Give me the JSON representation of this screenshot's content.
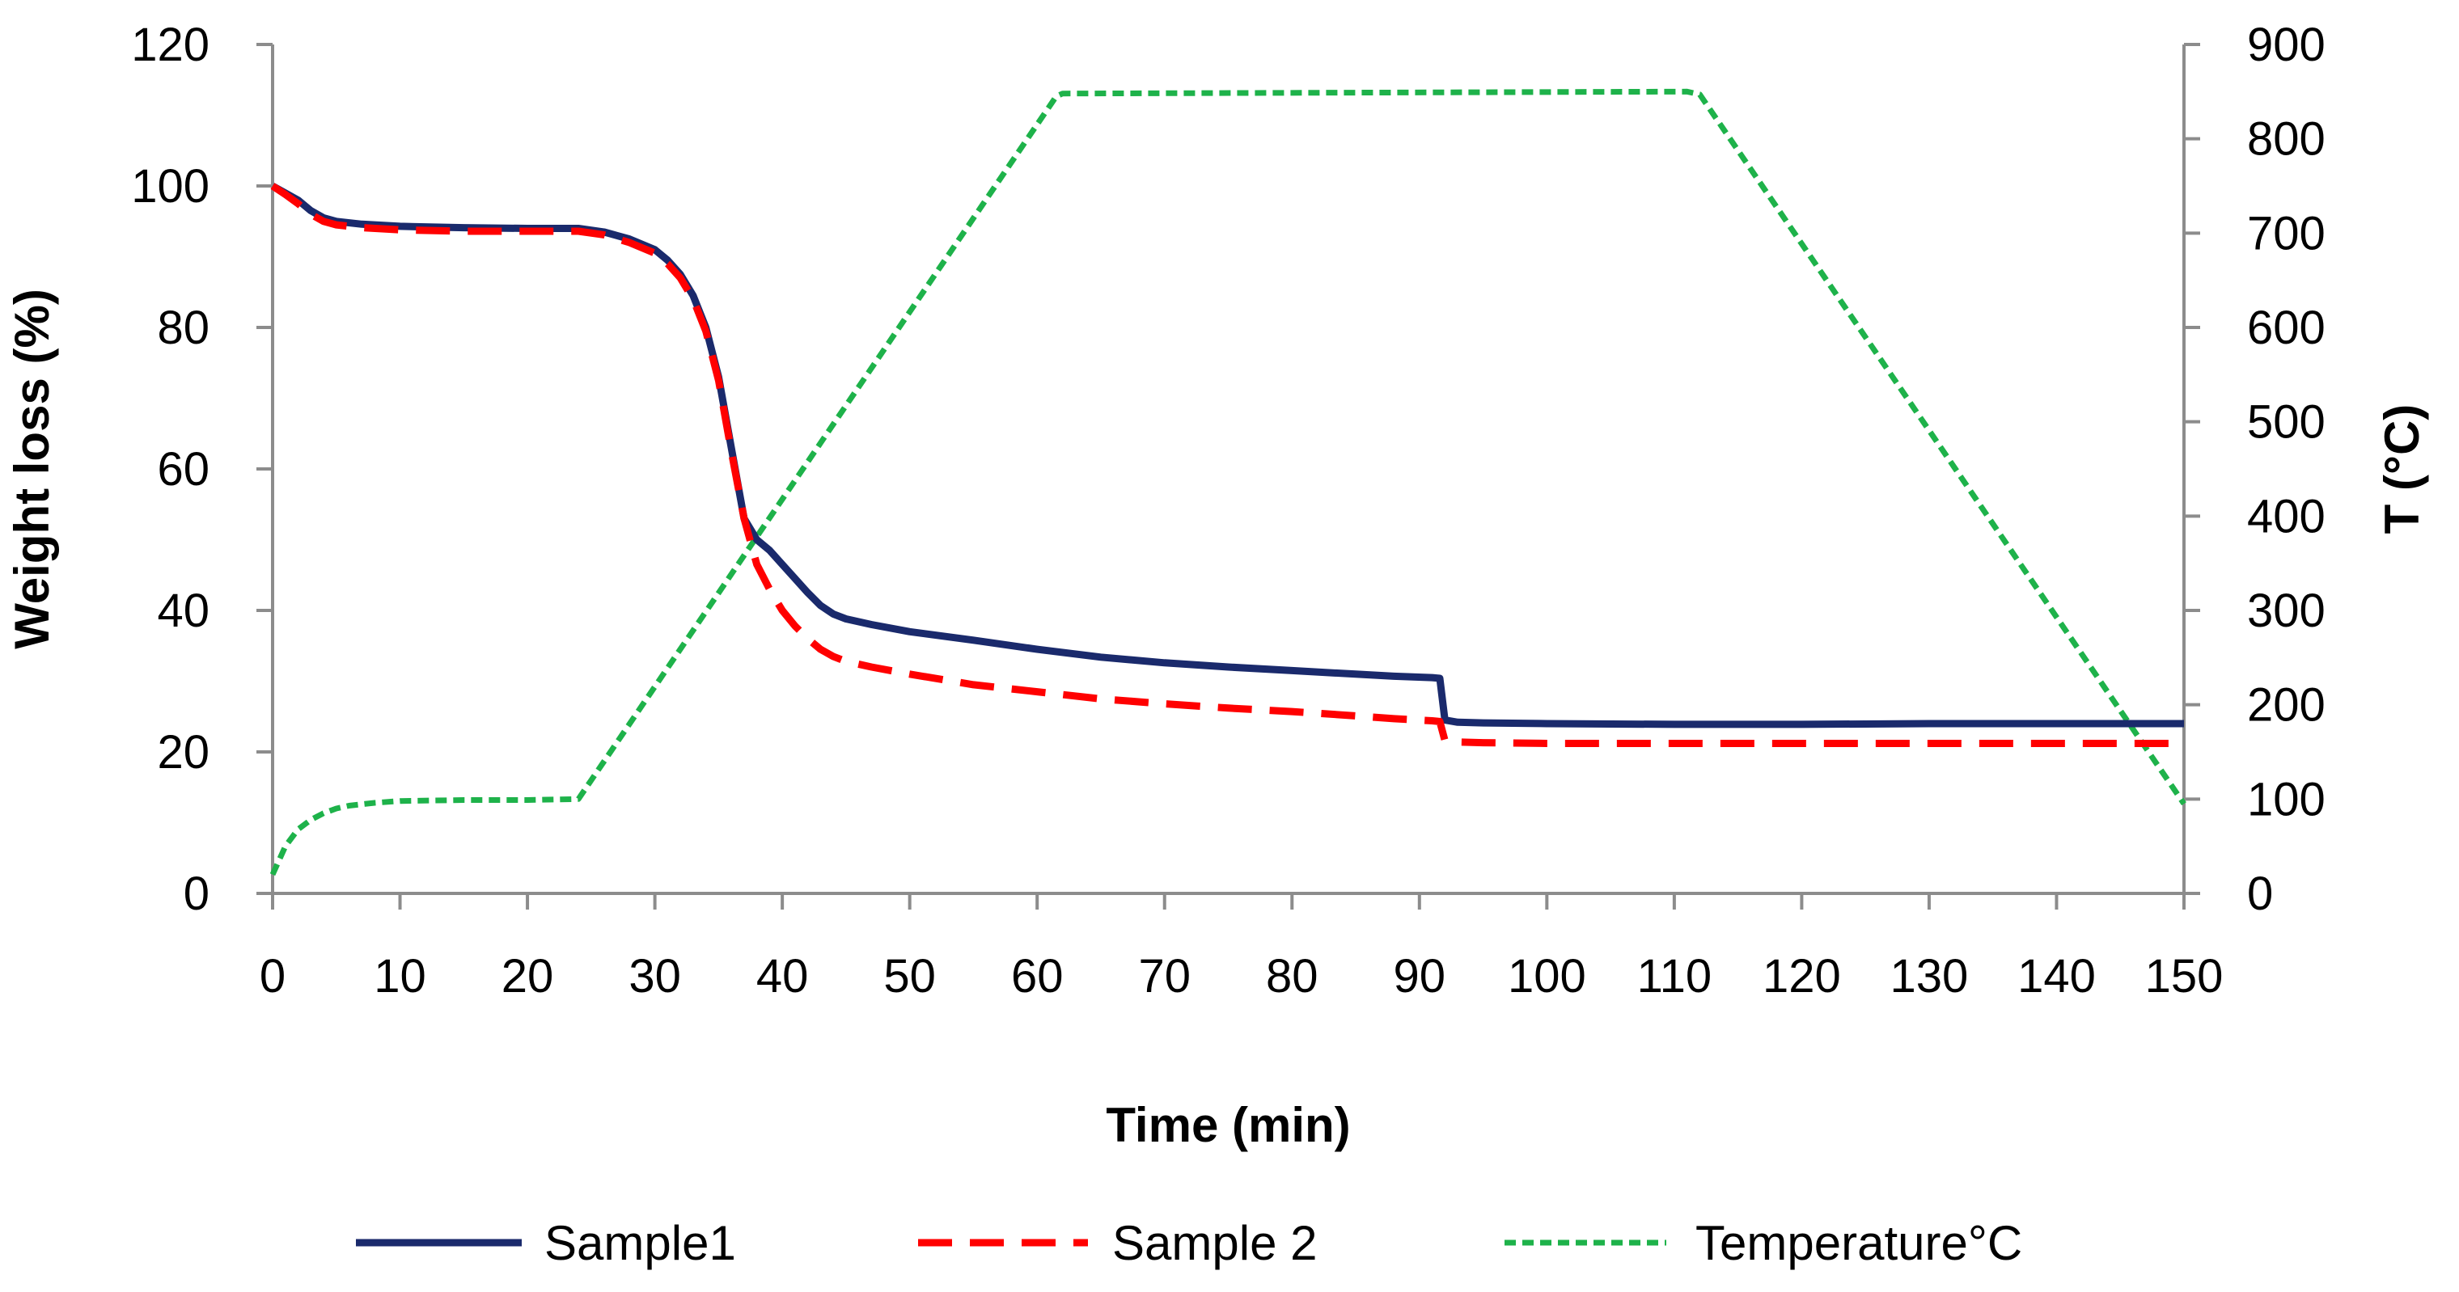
{
  "chart_data": {
    "type": "line",
    "title": "",
    "xlabel": "Time (min)",
    "ylabel": "Weight loss (%)",
    "y2label": "T (°C)",
    "xlim": [
      0,
      150
    ],
    "ylim": [
      0,
      120
    ],
    "y2lim": [
      0,
      900
    ],
    "xticks": [
      "0",
      "10",
      "20",
      "30",
      "40",
      "50",
      "60",
      "70",
      "80",
      "90",
      "100",
      "110",
      "120",
      "130",
      "140",
      "150"
    ],
    "yticks": [
      "0",
      "20",
      "40",
      "60",
      "80",
      "100",
      "120"
    ],
    "y2ticks": [
      "0",
      "100",
      "200",
      "300",
      "400",
      "500",
      "600",
      "700",
      "800",
      "900"
    ],
    "grid": false,
    "legend_position": "bottom",
    "series": [
      {
        "name": "Sample1",
        "axis": "left",
        "color": "#1a2a6c",
        "style": "solid",
        "x": [
          0,
          1,
          2,
          3,
          4,
          5,
          7,
          10,
          15,
          20,
          24,
          26,
          28,
          30,
          31,
          32,
          33,
          34,
          35,
          36,
          37,
          38,
          39,
          40,
          41,
          42,
          43,
          44,
          45,
          47,
          50,
          55,
          60,
          65,
          70,
          75,
          80,
          85,
          88,
          91,
          91.6,
          92,
          93,
          95,
          100,
          110,
          120,
          130,
          140,
          150
        ],
        "y": [
          100,
          99,
          98,
          96.5,
          95.5,
          95,
          94.6,
          94.3,
          94.1,
          94,
          94,
          93.5,
          92.5,
          91,
          89.5,
          87.5,
          84.5,
          80,
          73,
          63,
          53,
          50,
          48.5,
          46.5,
          44.5,
          42.5,
          40.7,
          39.5,
          38.8,
          38,
          37,
          35.8,
          34.5,
          33.4,
          32.6,
          32,
          31.5,
          31,
          30.7,
          30.5,
          30.4,
          24.5,
          24.2,
          24.1,
          24,
          23.9,
          23.9,
          24,
          24,
          24
        ]
      },
      {
        "name": "Sample 2",
        "axis": "left",
        "color": "#ff0000",
        "style": "dashed",
        "x": [
          0,
          1,
          2,
          3,
          4,
          5,
          7,
          10,
          15,
          20,
          24,
          26,
          28,
          30,
          31,
          32,
          33,
          34,
          35,
          36,
          37,
          38,
          39,
          40,
          41,
          42,
          43,
          44,
          45,
          47,
          50,
          55,
          60,
          65,
          70,
          75,
          80,
          85,
          88,
          91,
          91.6,
          92,
          93,
          95,
          100,
          110,
          120,
          130,
          140,
          150
        ],
        "y": [
          100,
          98.8,
          97.5,
          96,
          95,
          94.5,
          94.1,
          93.8,
          93.6,
          93.6,
          93.6,
          93.1,
          92,
          90.5,
          89,
          87,
          84,
          79.5,
          72.5,
          62.5,
          53,
          46.5,
          43,
          40,
          37.8,
          36,
          34.5,
          33.5,
          32.8,
          32,
          31,
          29.5,
          28.5,
          27.5,
          26.8,
          26.2,
          25.7,
          25.1,
          24.7,
          24.4,
          24.3,
          21.6,
          21.4,
          21.3,
          21.2,
          21.2,
          21.2,
          21.2,
          21.2,
          21.2
        ]
      },
      {
        "name": "Temperature°C",
        "axis": "right",
        "color": "#1eb24a",
        "style": "dotted",
        "x": [
          0,
          1,
          2,
          3,
          4,
          5,
          6,
          8,
          10,
          15,
          20,
          24,
          61.5,
          62,
          111,
          112,
          150
        ],
        "y": [
          20,
          50,
          68,
          78,
          85,
          90,
          93,
          96,
          98,
          99,
          99,
          100,
          845,
          848,
          850,
          847,
          95
        ]
      }
    ]
  }
}
